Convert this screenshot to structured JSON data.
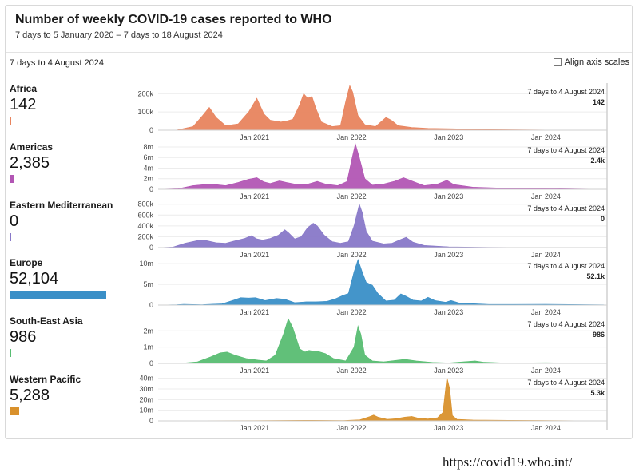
{
  "header": {
    "title": "Number of weekly COVID-19 cases reported to WHO",
    "subtitle": "7 days to 5 January 2020 – 7 days to 18 August 2024"
  },
  "controls": {
    "selected_week": "7 days to 4 August 2024",
    "align_axis_label": "Align axis scales",
    "align_axis_checked": false
  },
  "regions": [
    {
      "name": "Africa",
      "value": "142",
      "share": 0.0023,
      "color": "#e8845e"
    },
    {
      "name": "Americas",
      "value": "2,385",
      "share": 0.039,
      "color": "#b256b4"
    },
    {
      "name": "Eastern Mediterranean",
      "value": "0",
      "share": 0.0,
      "color": "#8878c8"
    },
    {
      "name": "Europe",
      "value": "52,104",
      "share": 0.85,
      "color": "#3a8fc7"
    },
    {
      "name": "South-East Asia",
      "value": "986",
      "share": 0.016,
      "color": "#58bd72"
    },
    {
      "name": "Western Pacific",
      "value": "5,288",
      "share": 0.086,
      "color": "#d9912c"
    }
  ],
  "footer": {
    "url": "https://covid19.who.int/"
  },
  "chart_data": [
    {
      "type": "area",
      "series": [
        {
          "name": "Africa"
        }
      ],
      "x_axis": {
        "range": [
          "2020-01-05",
          "2024-08-18"
        ],
        "tick_labels": [
          "Jan 2021",
          "Jan 2022",
          "Jan 2023",
          "Jan 2024"
        ]
      },
      "y_axis": {
        "tick_labels": [
          "0",
          "100k",
          "200k"
        ],
        "tick_values": [
          0,
          100000,
          200000
        ],
        "max": 245000
      },
      "tooltip": {
        "date": "7 days to 4 August 2024",
        "value": "142"
      },
      "points": [
        [
          "2020-01-05",
          0
        ],
        [
          "2020-03-15",
          1000
        ],
        [
          "2020-05-15",
          20000
        ],
        [
          "2020-06-20",
          80000
        ],
        [
          "2020-07-15",
          125000
        ],
        [
          "2020-08-10",
          70000
        ],
        [
          "2020-09-15",
          25000
        ],
        [
          "2020-11-01",
          35000
        ],
        [
          "2020-12-10",
          100000
        ],
        [
          "2021-01-10",
          175000
        ],
        [
          "2021-02-05",
          90000
        ],
        [
          "2021-03-01",
          55000
        ],
        [
          "2021-04-10",
          45000
        ],
        [
          "2021-05-01",
          50000
        ],
        [
          "2021-05-25",
          60000
        ],
        [
          "2021-06-20",
          140000
        ],
        [
          "2021-07-05",
          200000
        ],
        [
          "2021-07-20",
          175000
        ],
        [
          "2021-08-05",
          185000
        ],
        [
          "2021-08-20",
          120000
        ],
        [
          "2021-09-10",
          45000
        ],
        [
          "2021-10-20",
          20000
        ],
        [
          "2021-11-20",
          25000
        ],
        [
          "2021-12-10",
          160000
        ],
        [
          "2021-12-25",
          245000
        ],
        [
          "2022-01-05",
          210000
        ],
        [
          "2022-01-25",
          80000
        ],
        [
          "2022-02-20",
          30000
        ],
        [
          "2022-04-01",
          20000
        ],
        [
          "2022-05-10",
          70000
        ],
        [
          "2022-05-30",
          55000
        ],
        [
          "2022-06-25",
          25000
        ],
        [
          "2022-08-15",
          15000
        ],
        [
          "2022-10-15",
          10000
        ],
        [
          "2023-01-15",
          8000
        ],
        [
          "2023-06-01",
          3000
        ],
        [
          "2024-01-01",
          1000
        ],
        [
          "2024-08-04",
          142
        ]
      ]
    },
    {
      "type": "area",
      "series": [
        {
          "name": "Americas"
        }
      ],
      "x_axis": {
        "range": [
          "2020-01-05",
          "2024-08-18"
        ],
        "tick_labels": [
          "Jan 2021",
          "Jan 2022",
          "Jan 2023",
          "Jan 2024"
        ]
      },
      "y_axis": {
        "tick_labels": [
          "0",
          "2m",
          "4m",
          "6m",
          "8m"
        ],
        "tick_values": [
          0,
          2000000,
          4000000,
          6000000,
          8000000
        ],
        "max": 8600000
      },
      "tooltip": {
        "date": "7 days to 4 August 2024",
        "value": "2.4k"
      },
      "points": [
        [
          "2020-01-05",
          0
        ],
        [
          "2020-03-20",
          100000
        ],
        [
          "2020-05-15",
          700000
        ],
        [
          "2020-07-20",
          1000000
        ],
        [
          "2020-09-15",
          700000
        ],
        [
          "2020-11-01",
          1300000
        ],
        [
          "2020-12-10",
          1900000
        ],
        [
          "2021-01-10",
          2200000
        ],
        [
          "2021-02-05",
          1400000
        ],
        [
          "2021-03-01",
          1100000
        ],
        [
          "2021-04-05",
          1600000
        ],
        [
          "2021-05-01",
          1300000
        ],
        [
          "2021-06-01",
          1000000
        ],
        [
          "2021-07-15",
          900000
        ],
        [
          "2021-08-25",
          1500000
        ],
        [
          "2021-09-25",
          1000000
        ],
        [
          "2021-11-10",
          700000
        ],
        [
          "2021-12-15",
          1500000
        ],
        [
          "2022-01-01",
          5500000
        ],
        [
          "2022-01-15",
          8600000
        ],
        [
          "2022-01-30",
          6000000
        ],
        [
          "2022-02-20",
          2000000
        ],
        [
          "2022-03-20",
          800000
        ],
        [
          "2022-05-01",
          1000000
        ],
        [
          "2022-06-10",
          1500000
        ],
        [
          "2022-07-15",
          2200000
        ],
        [
          "2022-08-20",
          1500000
        ],
        [
          "2022-10-01",
          700000
        ],
        [
          "2022-11-20",
          1000000
        ],
        [
          "2022-12-25",
          1700000
        ],
        [
          "2023-01-20",
          900000
        ],
        [
          "2023-04-01",
          400000
        ],
        [
          "2023-08-01",
          200000
        ],
        [
          "2024-01-01",
          150000
        ],
        [
          "2024-08-04",
          2385
        ]
      ]
    },
    {
      "type": "area",
      "series": [
        {
          "name": "Eastern Mediterranean"
        }
      ],
      "x_axis": {
        "range": [
          "2020-01-05",
          "2024-08-18"
        ],
        "tick_labels": [
          "Jan 2021",
          "Jan 2022",
          "Jan 2023",
          "Jan 2024"
        ]
      },
      "y_axis": {
        "tick_labels": [
          "0",
          "200k",
          "400k",
          "600k",
          "800k"
        ],
        "tick_values": [
          0,
          200000,
          400000,
          600000,
          800000
        ],
        "max": 840000
      },
      "tooltip": {
        "date": "7 days to 4 August 2024",
        "value": "0"
      },
      "points": [
        [
          "2020-01-05",
          0
        ],
        [
          "2020-03-01",
          10000
        ],
        [
          "2020-04-15",
          80000
        ],
        [
          "2020-06-01",
          130000
        ],
        [
          "2020-06-25",
          140000
        ],
        [
          "2020-08-10",
          90000
        ],
        [
          "2020-09-15",
          80000
        ],
        [
          "2020-10-15",
          120000
        ],
        [
          "2020-11-25",
          170000
        ],
        [
          "2020-12-20",
          220000
        ],
        [
          "2021-01-10",
          160000
        ],
        [
          "2021-02-01",
          140000
        ],
        [
          "2021-03-01",
          170000
        ],
        [
          "2021-04-01",
          230000
        ],
        [
          "2021-04-25",
          330000
        ],
        [
          "2021-05-10",
          270000
        ],
        [
          "2021-06-01",
          160000
        ],
        [
          "2021-06-25",
          200000
        ],
        [
          "2021-07-20",
          370000
        ],
        [
          "2021-08-10",
          450000
        ],
        [
          "2021-08-25",
          400000
        ],
        [
          "2021-09-20",
          230000
        ],
        [
          "2021-10-20",
          110000
        ],
        [
          "2021-11-20",
          80000
        ],
        [
          "2021-12-20",
          110000
        ],
        [
          "2022-01-10",
          400000
        ],
        [
          "2022-01-30",
          800000
        ],
        [
          "2022-02-10",
          650000
        ],
        [
          "2022-02-25",
          300000
        ],
        [
          "2022-03-20",
          120000
        ],
        [
          "2022-05-01",
          70000
        ],
        [
          "2022-06-01",
          80000
        ],
        [
          "2022-07-05",
          150000
        ],
        [
          "2022-07-25",
          190000
        ],
        [
          "2022-08-20",
          100000
        ],
        [
          "2022-10-01",
          40000
        ],
        [
          "2023-01-01",
          15000
        ],
        [
          "2023-06-01",
          5000
        ],
        [
          "2024-01-01",
          2000
        ],
        [
          "2024-08-04",
          0
        ]
      ]
    },
    {
      "type": "area",
      "series": [
        {
          "name": "Europe"
        }
      ],
      "x_axis": {
        "range": [
          "2020-01-05",
          "2024-08-18"
        ],
        "tick_labels": [
          "Jan 2021",
          "Jan 2022",
          "Jan 2023",
          "Jan 2024"
        ]
      },
      "y_axis": {
        "tick_labels": [
          "0",
          "5m",
          "10m"
        ],
        "tick_values": [
          0,
          5000000,
          10000000
        ],
        "max": 11000000
      },
      "tooltip": {
        "date": "7 days to 4 August 2024",
        "value": "52.1k"
      },
      "points": [
        [
          "2020-01-05",
          0
        ],
        [
          "2020-03-15",
          100000
        ],
        [
          "2020-04-10",
          200000
        ],
        [
          "2020-06-15",
          100000
        ],
        [
          "2020-09-01",
          300000
        ],
        [
          "2020-10-15",
          1200000
        ],
        [
          "2020-11-10",
          1800000
        ],
        [
          "2020-12-10",
          1700000
        ],
        [
          "2021-01-05",
          1800000
        ],
        [
          "2021-02-10",
          1100000
        ],
        [
          "2021-03-25",
          1600000
        ],
        [
          "2021-04-25",
          1400000
        ],
        [
          "2021-06-01",
          600000
        ],
        [
          "2021-07-15",
          800000
        ],
        [
          "2021-08-20",
          800000
        ],
        [
          "2021-10-01",
          900000
        ],
        [
          "2021-11-01",
          1500000
        ],
        [
          "2021-12-01",
          2400000
        ],
        [
          "2021-12-20",
          2800000
        ],
        [
          "2022-01-10",
          8000000
        ],
        [
          "2022-01-25",
          11000000
        ],
        [
          "2022-02-10",
          8000000
        ],
        [
          "2022-02-25",
          5500000
        ],
        [
          "2022-03-20",
          4800000
        ],
        [
          "2022-04-10",
          2800000
        ],
        [
          "2022-05-10",
          1000000
        ],
        [
          "2022-06-10",
          1200000
        ],
        [
          "2022-07-05",
          2700000
        ],
        [
          "2022-07-20",
          2300000
        ],
        [
          "2022-08-20",
          1200000
        ],
        [
          "2022-09-20",
          1000000
        ],
        [
          "2022-10-15",
          1900000
        ],
        [
          "2022-11-10",
          1100000
        ],
        [
          "2022-12-20",
          700000
        ],
        [
          "2023-01-10",
          1100000
        ],
        [
          "2023-02-10",
          500000
        ],
        [
          "2023-06-01",
          150000
        ],
        [
          "2023-09-01",
          150000
        ],
        [
          "2024-01-01",
          200000
        ],
        [
          "2024-08-04",
          52104
        ]
      ]
    },
    {
      "type": "area",
      "series": [
        {
          "name": "South-East Asia"
        }
      ],
      "x_axis": {
        "range": [
          "2020-01-05",
          "2024-08-18"
        ],
        "tick_labels": [
          "Jan 2021",
          "Jan 2022",
          "Jan 2023",
          "Jan 2024"
        ]
      },
      "y_axis": {
        "tick_labels": [
          "0",
          "1m",
          "2m"
        ],
        "tick_values": [
          0,
          1000000,
          2000000
        ],
        "max": 2800000
      },
      "tooltip": {
        "date": "7 days to 4 August 2024",
        "value": "986"
      },
      "points": [
        [
          "2020-01-05",
          0
        ],
        [
          "2020-04-01",
          10000
        ],
        [
          "2020-06-01",
          100000
        ],
        [
          "2020-07-20",
          400000
        ],
        [
          "2020-08-25",
          650000
        ],
        [
          "2020-09-20",
          700000
        ],
        [
          "2020-10-20",
          500000
        ],
        [
          "2020-12-01",
          300000
        ],
        [
          "2021-01-15",
          200000
        ],
        [
          "2021-02-15",
          150000
        ],
        [
          "2021-03-20",
          500000
        ],
        [
          "2021-04-20",
          1800000
        ],
        [
          "2021-05-08",
          2750000
        ],
        [
          "2021-05-25",
          2200000
        ],
        [
          "2021-06-20",
          900000
        ],
        [
          "2021-07-10",
          700000
        ],
        [
          "2021-07-25",
          800000
        ],
        [
          "2021-08-10",
          750000
        ],
        [
          "2021-08-25",
          750000
        ],
        [
          "2021-09-25",
          600000
        ],
        [
          "2021-10-25",
          300000
        ],
        [
          "2021-12-10",
          150000
        ],
        [
          "2022-01-10",
          1000000
        ],
        [
          "2022-01-25",
          2300000
        ],
        [
          "2022-02-05",
          1800000
        ],
        [
          "2022-02-20",
          500000
        ],
        [
          "2022-03-20",
          150000
        ],
        [
          "2022-05-01",
          100000
        ],
        [
          "2022-07-20",
          250000
        ],
        [
          "2022-09-01",
          150000
        ],
        [
          "2022-11-01",
          60000
        ],
        [
          "2023-01-01",
          30000
        ],
        [
          "2023-04-10",
          150000
        ],
        [
          "2023-05-10",
          80000
        ],
        [
          "2023-08-01",
          20000
        ],
        [
          "2024-01-01",
          40000
        ],
        [
          "2024-08-04",
          986
        ]
      ]
    },
    {
      "type": "area",
      "series": [
        {
          "name": "Western Pacific"
        }
      ],
      "x_axis": {
        "range": [
          "2020-01-05",
          "2024-08-18"
        ],
        "tick_labels": [
          "Jan 2021",
          "Jan 2022",
          "Jan 2023",
          "Jan 2024"
        ]
      },
      "y_axis": {
        "tick_labels": [
          "0",
          "10m",
          "20m",
          "30m",
          "40m"
        ],
        "tick_values": [
          0,
          10000000,
          20000000,
          30000000,
          40000000
        ],
        "max": 42000000
      },
      "tooltip": {
        "date": "7 days to 4 August 2024",
        "value": "5.3k"
      },
      "points": [
        [
          "2020-01-05",
          0
        ],
        [
          "2021-01-01",
          200000
        ],
        [
          "2021-08-01",
          500000
        ],
        [
          "2021-12-01",
          300000
        ],
        [
          "2022-02-01",
          1000000
        ],
        [
          "2022-03-10",
          4000000
        ],
        [
          "2022-03-25",
          5500000
        ],
        [
          "2022-04-10",
          3500000
        ],
        [
          "2022-05-15",
          1500000
        ],
        [
          "2022-06-15",
          2000000
        ],
        [
          "2022-07-20",
          3500000
        ],
        [
          "2022-08-15",
          4200000
        ],
        [
          "2022-09-10",
          2500000
        ],
        [
          "2022-10-15",
          1800000
        ],
        [
          "2022-11-20",
          3000000
        ],
        [
          "2022-12-10",
          8000000
        ],
        [
          "2022-12-25",
          41000000
        ],
        [
          "2023-01-05",
          30000000
        ],
        [
          "2023-01-15",
          5000000
        ],
        [
          "2023-02-01",
          1500000
        ],
        [
          "2023-04-01",
          800000
        ],
        [
          "2023-07-01",
          600000
        ],
        [
          "2024-01-01",
          400000
        ],
        [
          "2024-08-04",
          5288
        ]
      ]
    }
  ]
}
